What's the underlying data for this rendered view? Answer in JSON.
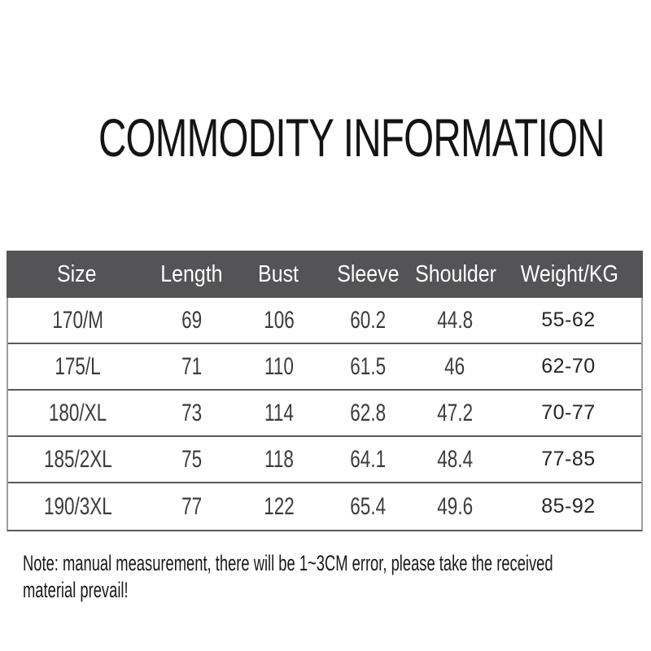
{
  "title": "COMMODITY INFORMATION",
  "table": {
    "columns": [
      "Size",
      "Length",
      "Bust",
      "Sleeve",
      "Shoulder",
      "Weight/KG"
    ],
    "rows": [
      {
        "size": "170/M",
        "length": "69",
        "bust": "106",
        "sleeve": "60.2",
        "shoulder": "44.8",
        "weight": "55-62"
      },
      {
        "size": "175/L",
        "length": "71",
        "bust": "110",
        "sleeve": "61.5",
        "shoulder": "46",
        "weight": "62-70"
      },
      {
        "size": "180/XL",
        "length": "73",
        "bust": "114",
        "sleeve": "62.8",
        "shoulder": "47.2",
        "weight": "70-77"
      },
      {
        "size": "185/2XL",
        "length": "75",
        "bust": "118",
        "sleeve": "64.1",
        "shoulder": "48.4",
        "weight": "77-85"
      },
      {
        "size": "190/3XL",
        "length": "77",
        "bust": "122",
        "sleeve": "65.4",
        "shoulder": "49.6",
        "weight": "85-92"
      }
    ]
  },
  "note": {
    "line1": "Note: manual measurement, there will be 1~3CM error, please take the received",
    "line2": "material prevail!"
  },
  "colors": {
    "header_bg": "#545456",
    "header_text": "#ffffff",
    "row_divider": "#5a5a5a",
    "side_border": "#9e9e9e",
    "body_text": "#3c3c3c",
    "title_text": "#141414",
    "background": "#ffffff"
  }
}
